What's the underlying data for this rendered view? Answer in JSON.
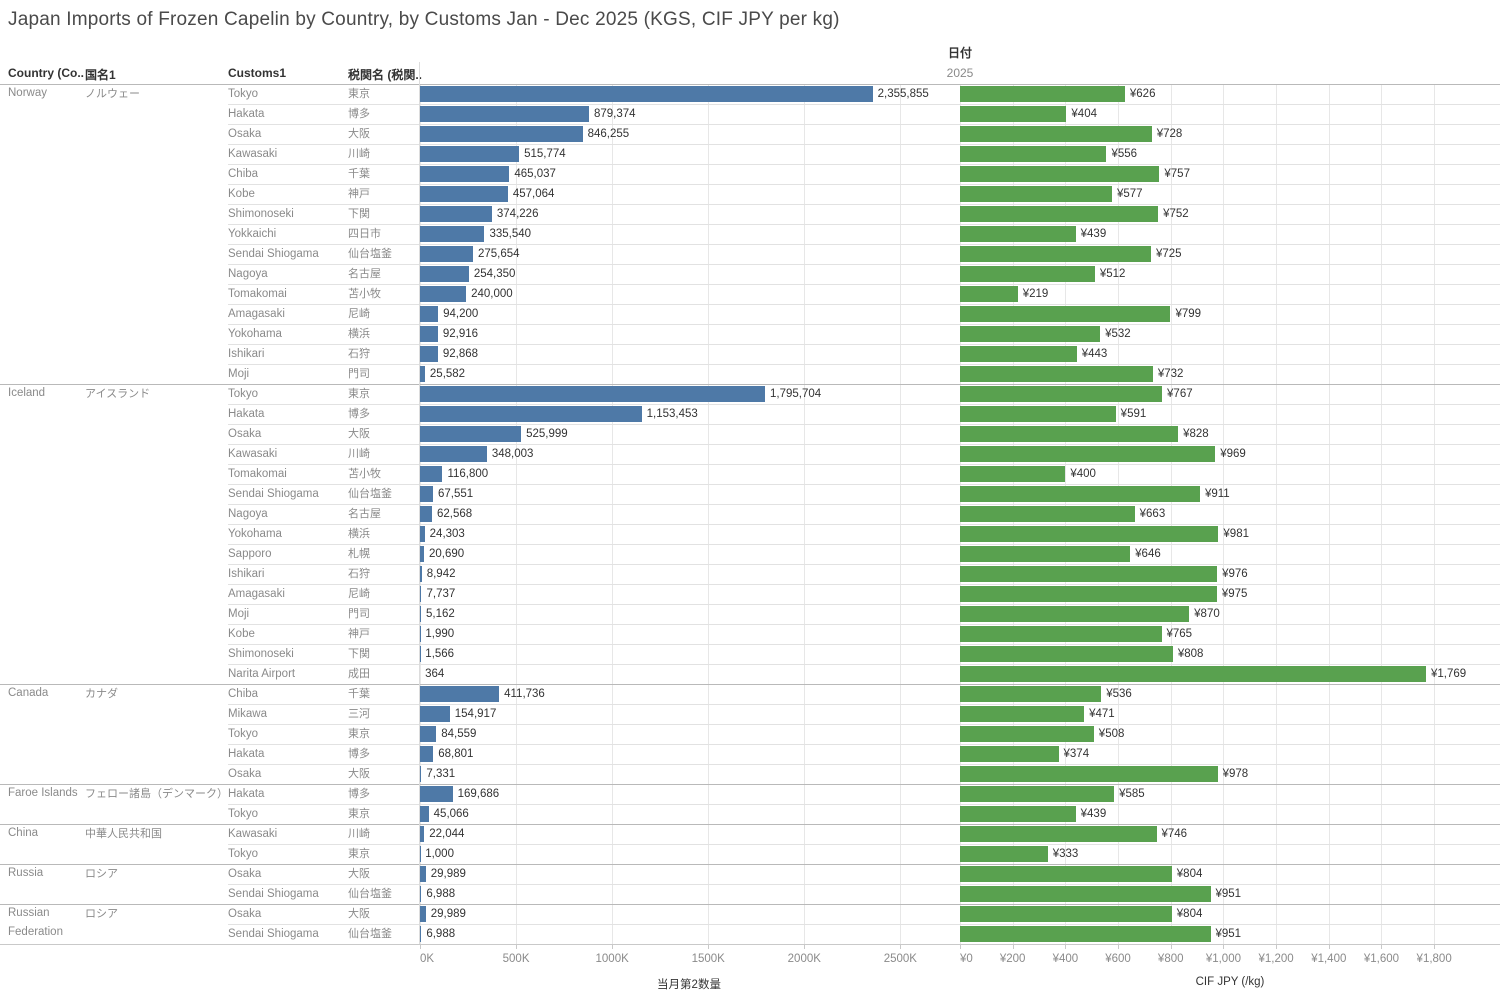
{
  "title": "Japan Imports of Frozen Capelin by Country, by Customs Jan - Dec 2025 (KGS, CIF JPY per kg)",
  "date_header": {
    "label": "日付",
    "year": "2025"
  },
  "columns": {
    "country": "Country (Co..",
    "country_jp": "国名1",
    "customs": "Customs1",
    "customs_jp": "税関名 (税関.."
  },
  "colors": {
    "bar_blue": "#4e79a7",
    "bar_green": "#59a14f"
  },
  "chart_data": {
    "type": "bar",
    "title": "Japan Imports of Frozen Capelin by Country, by Customs Jan - Dec 2025 (KGS, CIF JPY per kg)",
    "qty_axis": {
      "title": "当月第2数量",
      "max": 2800000,
      "ticks": [
        {
          "v": 0,
          "label": "0K"
        },
        {
          "v": 500000,
          "label": "500K"
        },
        {
          "v": 1000000,
          "label": "1000K"
        },
        {
          "v": 1500000,
          "label": "1500K"
        },
        {
          "v": 2000000,
          "label": "2000K"
        },
        {
          "v": 2500000,
          "label": "2500K"
        }
      ]
    },
    "price_axis": {
      "title": "CIF JPY (/kg)",
      "max": 2050,
      "ticks": [
        {
          "v": 0,
          "label": "¥0"
        },
        {
          "v": 200,
          "label": "¥200"
        },
        {
          "v": 400,
          "label": "¥400"
        },
        {
          "v": 600,
          "label": "¥600"
        },
        {
          "v": 800,
          "label": "¥800"
        },
        {
          "v": 1000,
          "label": "¥1,000"
        },
        {
          "v": 1200,
          "label": "¥1,200"
        },
        {
          "v": 1400,
          "label": "¥1,400"
        },
        {
          "v": 1600,
          "label": "¥1,600"
        },
        {
          "v": 1800,
          "label": "¥1,800"
        }
      ]
    },
    "groups": [
      {
        "country": "Norway",
        "country_jp": "ノルウェー",
        "rows": [
          {
            "customs": "Tokyo",
            "customs_jp": "東京",
            "qty": 2355855,
            "qty_label": "2,355,855",
            "price": 626,
            "price_label": "¥626"
          },
          {
            "customs": "Hakata",
            "customs_jp": "博多",
            "qty": 879374,
            "qty_label": "879,374",
            "price": 404,
            "price_label": "¥404"
          },
          {
            "customs": "Osaka",
            "customs_jp": "大阪",
            "qty": 846255,
            "qty_label": "846,255",
            "price": 728,
            "price_label": "¥728"
          },
          {
            "customs": "Kawasaki",
            "customs_jp": "川崎",
            "qty": 515774,
            "qty_label": "515,774",
            "price": 556,
            "price_label": "¥556"
          },
          {
            "customs": "Chiba",
            "customs_jp": "千葉",
            "qty": 465037,
            "qty_label": "465,037",
            "price": 757,
            "price_label": "¥757"
          },
          {
            "customs": "Kobe",
            "customs_jp": "神戸",
            "qty": 457064,
            "qty_label": "457,064",
            "price": 577,
            "price_label": "¥577"
          },
          {
            "customs": "Shimonoseki",
            "customs_jp": "下関",
            "qty": 374226,
            "qty_label": "374,226",
            "price": 752,
            "price_label": "¥752"
          },
          {
            "customs": "Yokkaichi",
            "customs_jp": "四日市",
            "qty": 335540,
            "qty_label": "335,540",
            "price": 439,
            "price_label": "¥439"
          },
          {
            "customs": "Sendai Shiogama",
            "customs_jp": "仙台塩釜",
            "qty": 275654,
            "qty_label": "275,654",
            "price": 725,
            "price_label": "¥725"
          },
          {
            "customs": "Nagoya",
            "customs_jp": "名古屋",
            "qty": 254350,
            "qty_label": "254,350",
            "price": 512,
            "price_label": "¥512"
          },
          {
            "customs": "Tomakomai",
            "customs_jp": "苫小牧",
            "qty": 240000,
            "qty_label": "240,000",
            "price": 219,
            "price_label": "¥219"
          },
          {
            "customs": "Amagasaki",
            "customs_jp": "尼崎",
            "qty": 94200,
            "qty_label": "94,200",
            "price": 799,
            "price_label": "¥799"
          },
          {
            "customs": "Yokohama",
            "customs_jp": "横浜",
            "qty": 92916,
            "qty_label": "92,916",
            "price": 532,
            "price_label": "¥532"
          },
          {
            "customs": "Ishikari",
            "customs_jp": "石狩",
            "qty": 92868,
            "qty_label": "92,868",
            "price": 443,
            "price_label": "¥443"
          },
          {
            "customs": "Moji",
            "customs_jp": "門司",
            "qty": 25582,
            "qty_label": "25,582",
            "price": 732,
            "price_label": "¥732"
          }
        ]
      },
      {
        "country": "Iceland",
        "country_jp": "アイスランド",
        "rows": [
          {
            "customs": "Tokyo",
            "customs_jp": "東京",
            "qty": 1795704,
            "qty_label": "1,795,704",
            "price": 767,
            "price_label": "¥767"
          },
          {
            "customs": "Hakata",
            "customs_jp": "博多",
            "qty": 1153453,
            "qty_label": "1,153,453",
            "price": 591,
            "price_label": "¥591"
          },
          {
            "customs": "Osaka",
            "customs_jp": "大阪",
            "qty": 525999,
            "qty_label": "525,999",
            "price": 828,
            "price_label": "¥828"
          },
          {
            "customs": "Kawasaki",
            "customs_jp": "川崎",
            "qty": 348003,
            "qty_label": "348,003",
            "price": 969,
            "price_label": "¥969"
          },
          {
            "customs": "Tomakomai",
            "customs_jp": "苫小牧",
            "qty": 116800,
            "qty_label": "116,800",
            "price": 400,
            "price_label": "¥400"
          },
          {
            "customs": "Sendai Shiogama",
            "customs_jp": "仙台塩釜",
            "qty": 67551,
            "qty_label": "67,551",
            "price": 911,
            "price_label": "¥911"
          },
          {
            "customs": "Nagoya",
            "customs_jp": "名古屋",
            "qty": 62568,
            "qty_label": "62,568",
            "price": 663,
            "price_label": "¥663"
          },
          {
            "customs": "Yokohama",
            "customs_jp": "横浜",
            "qty": 24303,
            "qty_label": "24,303",
            "price": 981,
            "price_label": "¥981"
          },
          {
            "customs": "Sapporo",
            "customs_jp": "札幌",
            "qty": 20690,
            "qty_label": "20,690",
            "price": 646,
            "price_label": "¥646"
          },
          {
            "customs": "Ishikari",
            "customs_jp": "石狩",
            "qty": 8942,
            "qty_label": "8,942",
            "price": 976,
            "price_label": "¥976"
          },
          {
            "customs": "Amagasaki",
            "customs_jp": "尼崎",
            "qty": 7737,
            "qty_label": "7,737",
            "price": 975,
            "price_label": "¥975"
          },
          {
            "customs": "Moji",
            "customs_jp": "門司",
            "qty": 5162,
            "qty_label": "5,162",
            "price": 870,
            "price_label": "¥870"
          },
          {
            "customs": "Kobe",
            "customs_jp": "神戸",
            "qty": 1990,
            "qty_label": "1,990",
            "price": 765,
            "price_label": "¥765"
          },
          {
            "customs": "Shimonoseki",
            "customs_jp": "下関",
            "qty": 1566,
            "qty_label": "1,566",
            "price": 808,
            "price_label": "¥808"
          },
          {
            "customs": "Narita Airport",
            "customs_jp": "成田",
            "qty": 364,
            "qty_label": "364",
            "price": 1769,
            "price_label": "¥1,769"
          }
        ]
      },
      {
        "country": "Canada",
        "country_jp": "カナダ",
        "rows": [
          {
            "customs": "Chiba",
            "customs_jp": "千葉",
            "qty": 411736,
            "qty_label": "411,736",
            "price": 536,
            "price_label": "¥536"
          },
          {
            "customs": "Mikawa",
            "customs_jp": "三河",
            "qty": 154917,
            "qty_label": "154,917",
            "price": 471,
            "price_label": "¥471"
          },
          {
            "customs": "Tokyo",
            "customs_jp": "東京",
            "qty": 84559,
            "qty_label": "84,559",
            "price": 508,
            "price_label": "¥508"
          },
          {
            "customs": "Hakata",
            "customs_jp": "博多",
            "qty": 68801,
            "qty_label": "68,801",
            "price": 374,
            "price_label": "¥374"
          },
          {
            "customs": "Osaka",
            "customs_jp": "大阪",
            "qty": 7331,
            "qty_label": "7,331",
            "price": 978,
            "price_label": "¥978"
          }
        ]
      },
      {
        "country": "Faroe Islands",
        "country_jp": "フェロー諸島（デンマーク）",
        "rows": [
          {
            "customs": "Hakata",
            "customs_jp": "博多",
            "qty": 169686,
            "qty_label": "169,686",
            "price": 585,
            "price_label": "¥585"
          },
          {
            "customs": "Tokyo",
            "customs_jp": "東京",
            "qty": 45066,
            "qty_label": "45,066",
            "price": 439,
            "price_label": "¥439"
          }
        ]
      },
      {
        "country": "China",
        "country_jp": "中華人民共和国",
        "rows": [
          {
            "customs": "Kawasaki",
            "customs_jp": "川崎",
            "qty": 22044,
            "qty_label": "22,044",
            "price": 746,
            "price_label": "¥746"
          },
          {
            "customs": "Tokyo",
            "customs_jp": "東京",
            "qty": 1000,
            "qty_label": "1,000",
            "price": 333,
            "price_label": "¥333"
          }
        ]
      },
      {
        "country": "Russia",
        "country_jp": "ロシア",
        "rows": [
          {
            "customs": "Osaka",
            "customs_jp": "大阪",
            "qty": 29989,
            "qty_label": "29,989",
            "price": 804,
            "price_label": "¥804"
          },
          {
            "customs": "Sendai Shiogama",
            "customs_jp": "仙台塩釜",
            "qty": 6988,
            "qty_label": "6,988",
            "price": 951,
            "price_label": "¥951"
          }
        ]
      },
      {
        "country": "Russian Federation",
        "country_jp": "ロシア",
        "rows": [
          {
            "customs": "Osaka",
            "customs_jp": "大阪",
            "qty": 29989,
            "qty_label": "29,989",
            "price": 804,
            "price_label": "¥804"
          },
          {
            "customs": "Sendai Shiogama",
            "customs_jp": "仙台塩釜",
            "qty": 6988,
            "qty_label": "6,988",
            "price": 951,
            "price_label": "¥951"
          }
        ]
      }
    ]
  }
}
